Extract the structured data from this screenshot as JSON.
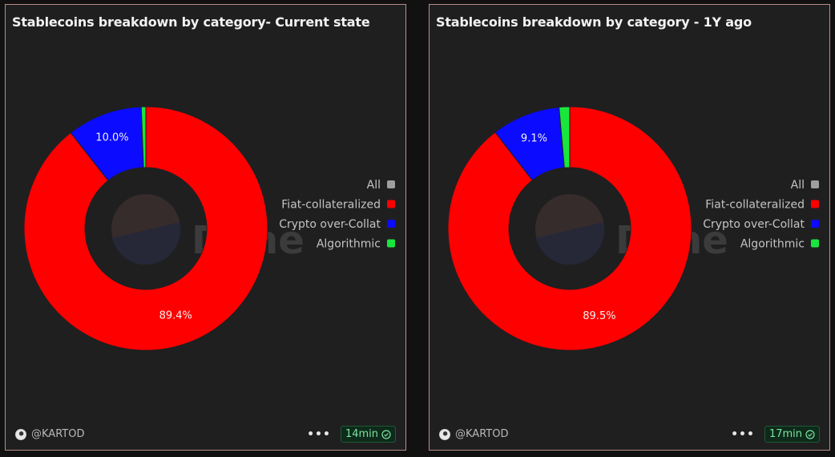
{
  "watermark": "Dune",
  "legend_dot_all": "#9e9e9e",
  "panels": [
    {
      "title": "Stablecoins breakdown by category- Current state",
      "author": "@KARTOD",
      "refresh": "14min",
      "menu_icon": "ellipsis-icon",
      "status_icon": "check-circle-icon"
    },
    {
      "title": "Stablecoins breakdown by category - 1Y ago",
      "author": "@KARTOD",
      "refresh": "17min",
      "menu_icon": "ellipsis-icon",
      "status_icon": "check-circle-icon"
    }
  ],
  "chart_data": [
    {
      "type": "pie",
      "variant": "donut",
      "title": "Stablecoins breakdown by category- Current state",
      "legend": [
        "All",
        "Fiat-collateralized",
        "Crypto over-Collat",
        "Algorithmic"
      ],
      "legend_placement": "right",
      "slices": [
        {
          "name": "Fiat-collateralized",
          "value": 89.4,
          "label": "89.4%",
          "color": "#ff0000"
        },
        {
          "name": "Crypto over-Collat",
          "value": 10.0,
          "label": "10.0%",
          "color": "#0b0bff"
        },
        {
          "name": "Algorithmic",
          "value": 0.6,
          "label": "",
          "color": "#19e63c"
        }
      ]
    },
    {
      "type": "pie",
      "variant": "donut",
      "title": "Stablecoins breakdown by category - 1Y ago",
      "legend": [
        "All",
        "Fiat-collateralized",
        "Crypto over-Collat",
        "Algorithmic"
      ],
      "legend_placement": "right",
      "slices": [
        {
          "name": "Fiat-collateralized",
          "value": 89.5,
          "label": "89.5%",
          "color": "#ff0000"
        },
        {
          "name": "Crypto over-Collat",
          "value": 9.1,
          "label": "9.1%",
          "color": "#0b0bff"
        },
        {
          "name": "Algorithmic",
          "value": 1.4,
          "label": "",
          "color": "#19e63c"
        }
      ]
    }
  ]
}
